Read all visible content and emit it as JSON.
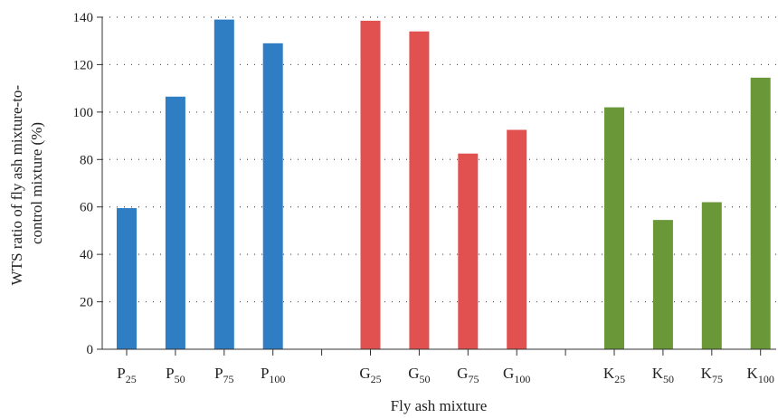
{
  "chart_data": {
    "type": "bar",
    "categories": [
      {
        "base": "P",
        "sub": "25",
        "value": 59.5,
        "group": "P"
      },
      {
        "base": "P",
        "sub": "50",
        "value": 106.5,
        "group": "P"
      },
      {
        "base": "P",
        "sub": "75",
        "value": 139,
        "group": "P"
      },
      {
        "base": "P",
        "sub": "100",
        "value": 129,
        "group": "P"
      },
      {
        "base": "",
        "sub": "",
        "value": null,
        "group": ""
      },
      {
        "base": "G",
        "sub": "25",
        "value": 138.5,
        "group": "G"
      },
      {
        "base": "G",
        "sub": "50",
        "value": 134,
        "group": "G"
      },
      {
        "base": "G",
        "sub": "75",
        "value": 82.5,
        "group": "G"
      },
      {
        "base": "G",
        "sub": "100",
        "value": 92.5,
        "group": "G"
      },
      {
        "base": "",
        "sub": "",
        "value": null,
        "group": ""
      },
      {
        "base": "K",
        "sub": "25",
        "value": 102,
        "group": "K"
      },
      {
        "base": "K",
        "sub": "50",
        "value": 54.5,
        "group": "K"
      },
      {
        "base": "K",
        "sub": "75",
        "value": 62,
        "group": "K"
      },
      {
        "base": "K",
        "sub": "100",
        "value": 114.5,
        "group": "K"
      }
    ],
    "colors": {
      "P": "#2f7ec4",
      "G": "#e05150",
      "K": "#6a9738"
    },
    "xlabel": "Fly ash mixture",
    "ylabel_lines": [
      "WTS ratio of fly ash mixture-to-",
      "control mixture (%)"
    ],
    "ylim": [
      0,
      140
    ],
    "yticks": [
      0,
      20,
      40,
      60,
      80,
      100,
      120,
      140
    ],
    "grid": true
  }
}
